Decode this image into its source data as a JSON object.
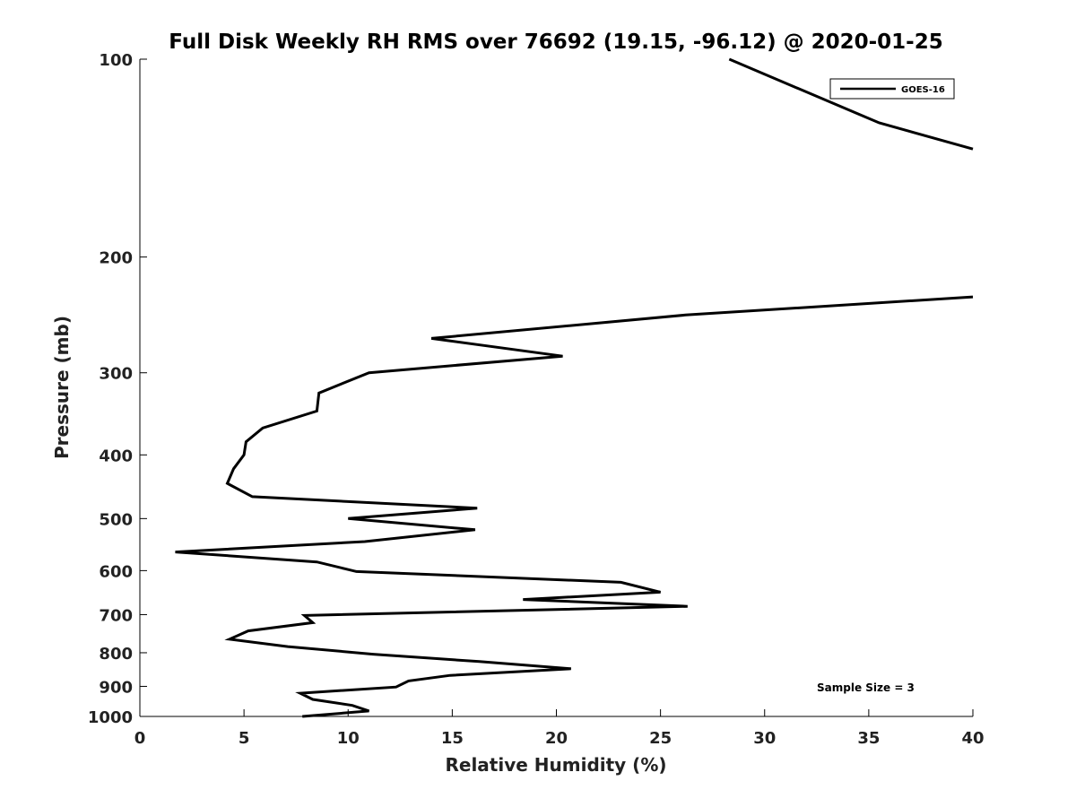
{
  "chart_data": {
    "type": "line",
    "title": "Full Disk Weekly RH RMS over 76692 (19.15, -96.12) @ 2020-01-25",
    "xlabel": "Relative Humidity (%)",
    "ylabel": "Pressure (mb)",
    "xlim": [
      0,
      40
    ],
    "ylim": [
      100,
      1000
    ],
    "y_scale": "log",
    "y_reversed": true,
    "grid": false,
    "legend": "top-right",
    "annotation": "Sample Size = 3",
    "x_ticks": [
      0,
      5,
      10,
      15,
      20,
      25,
      30,
      35,
      40
    ],
    "y_ticks": [
      100,
      200,
      300,
      400,
      500,
      600,
      700,
      800,
      900,
      1000
    ],
    "x_tick_labels": [
      "0",
      "5",
      "10",
      "15",
      "20",
      "25",
      "30",
      "35",
      "40"
    ],
    "y_tick_labels": [
      "100",
      "200",
      "300",
      "400",
      "500",
      "600",
      "700",
      "800",
      "900",
      "1000"
    ],
    "series": [
      {
        "name": "GOES-16",
        "color": "#000000",
        "points": [
          [
            28.3,
            100
          ],
          [
            35.5,
            125
          ],
          [
            40,
            137
          ],
          [
            null,
            null
          ],
          [
            40,
            230
          ],
          [
            26.2,
            245
          ],
          [
            14.0,
            266
          ],
          [
            20.3,
            283
          ],
          [
            11.0,
            300
          ],
          [
            8.6,
            322
          ],
          [
            8.5,
            343
          ],
          [
            5.9,
            364
          ],
          [
            5.1,
            382
          ],
          [
            5.0,
            400
          ],
          [
            4.5,
            420
          ],
          [
            4.2,
            442
          ],
          [
            5.4,
            463
          ],
          [
            16.2,
            482
          ],
          [
            10.0,
            500
          ],
          [
            16.1,
            520
          ],
          [
            10.8,
            542
          ],
          [
            1.7,
            562
          ],
          [
            8.5,
            582
          ],
          [
            10.4,
            602
          ],
          [
            23.1,
            625
          ],
          [
            25.0,
            647
          ],
          [
            18.4,
            664
          ],
          [
            26.3,
            680
          ],
          [
            7.9,
            702
          ],
          [
            8.3,
            720
          ],
          [
            5.2,
            741
          ],
          [
            4.3,
            763
          ],
          [
            7.1,
            783
          ],
          [
            11.2,
            804
          ],
          [
            16.3,
            825
          ],
          [
            20.7,
            846
          ],
          [
            14.9,
            866
          ],
          [
            12.9,
            883
          ],
          [
            12.3,
            902
          ],
          [
            7.7,
            922
          ],
          [
            8.3,
            942
          ],
          [
            10.2,
            962
          ],
          [
            11.0,
            981
          ],
          [
            7.8,
            1000
          ]
        ]
      }
    ]
  }
}
